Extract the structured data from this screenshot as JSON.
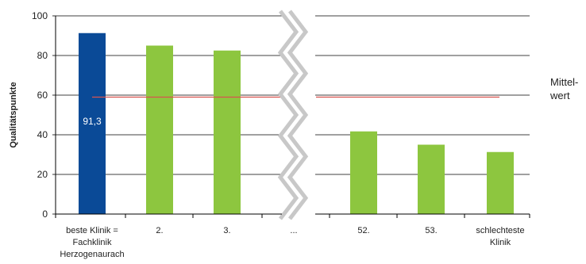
{
  "chart_data": {
    "type": "bar",
    "ylabel": "Qualitätspunkte",
    "ylim": [
      0,
      100
    ],
    "yticks": [
      0,
      20,
      40,
      60,
      80,
      100
    ],
    "grid": true,
    "axis_break": "between category 3 and category 5",
    "categories": [
      [
        "beste Klinik =",
        "Fachklinik",
        "Herzogenaurach"
      ],
      [
        "2."
      ],
      [
        "3."
      ],
      [
        "..."
      ],
      [
        "52."
      ],
      [
        "53."
      ],
      [
        "schlechteste",
        "Klinik"
      ]
    ],
    "values": [
      91.3,
      85,
      82.5,
      null,
      41.7,
      35,
      31.3
    ],
    "bar_colors": [
      "#0a4a97",
      "#8dc63f",
      "#8dc63f",
      null,
      "#8dc63f",
      "#8dc63f",
      "#8dc63f"
    ],
    "data_labels": [
      "91,3",
      "",
      "",
      "",
      "",
      "",
      ""
    ],
    "reference_line": {
      "value": 59,
      "label": [
        "Mittel-",
        "wert"
      ],
      "color": "#d9534f"
    }
  }
}
